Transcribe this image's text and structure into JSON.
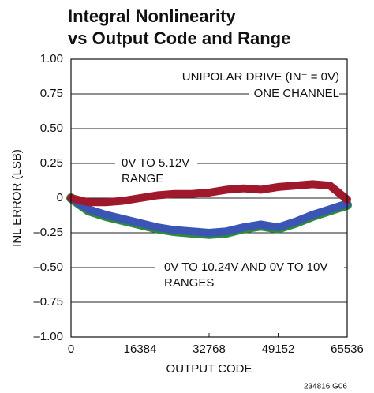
{
  "chart_data": {
    "type": "line",
    "title": [
      "Integral Nonlinearity",
      "vs Output Code and Range"
    ],
    "xlabel": "OUTPUT CODE",
    "ylabel": "INL ERROR (LSB)",
    "annotations": [
      "UNIPOLAR DRIVE (IN⁻ = 0V)",
      "ONE CHANNEL",
      "0V TO 5.12V",
      "RANGE",
      "0V TO 10.24V AND 0V TO 10V",
      "RANGES"
    ],
    "footnote": "234816 G06",
    "x": [
      0,
      4096,
      8192,
      12288,
      16384,
      20480,
      24576,
      28672,
      32768,
      36864,
      40960,
      45056,
      49152,
      53248,
      57344,
      61440,
      65536
    ],
    "series": [
      {
        "color": "#2e8b3a",
        "values": [
          0,
          -0.09,
          -0.13,
          -0.16,
          -0.19,
          -0.22,
          -0.24,
          -0.25,
          -0.26,
          -0.25,
          -0.22,
          -0.2,
          -0.22,
          -0.18,
          -0.13,
          -0.09,
          -0.05
        ]
      },
      {
        "color": "#3a55b4",
        "values": [
          0,
          -0.08,
          -0.12,
          -0.15,
          -0.18,
          -0.21,
          -0.23,
          -0.24,
          -0.25,
          -0.24,
          -0.21,
          -0.19,
          -0.21,
          -0.17,
          -0.12,
          -0.08,
          -0.04
        ]
      },
      {
        "color": "#a0182c",
        "values": [
          0,
          -0.03,
          -0.03,
          -0.02,
          0,
          0.02,
          0.03,
          0.03,
          0.04,
          0.06,
          0.07,
          0.06,
          0.08,
          0.09,
          0.1,
          0.09,
          -0.01
        ]
      }
    ],
    "xlim": [
      0,
      65536
    ],
    "xticks": [
      0,
      16384,
      32768,
      49152,
      65536
    ],
    "ylim": [
      -1,
      1
    ],
    "yticks": [
      {
        "value": -1,
        "label": "–1.00"
      },
      {
        "value": -0.75,
        "label": "–0.75"
      },
      {
        "value": -0.5,
        "label": "–0.50"
      },
      {
        "value": -0.25,
        "label": "–0.25"
      },
      0,
      0.25,
      {
        "value": 0.5,
        "label": "0.50"
      },
      0.75,
      {
        "value": 1,
        "label": "1.00"
      }
    ],
    "grid": true
  }
}
